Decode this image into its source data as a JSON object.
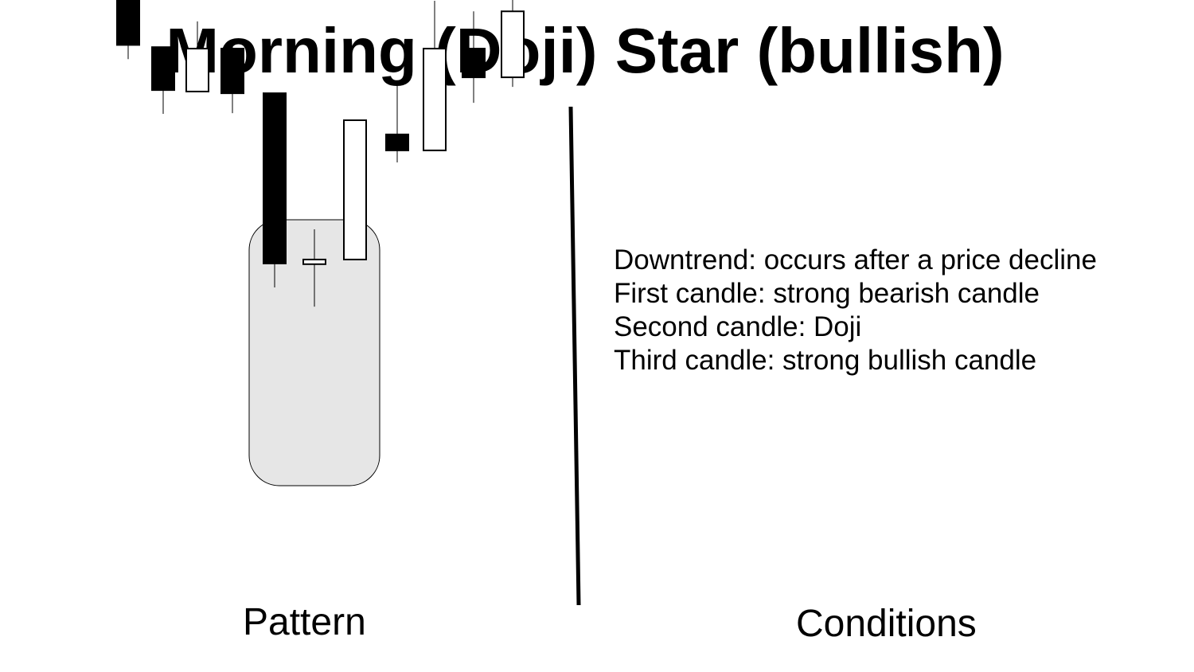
{
  "title": "Morning (Doji) Star (bullish)",
  "labels": {
    "pattern": "Pattern",
    "conditions": "Conditions"
  },
  "conditions": [
    "Downtrend: occurs after a price decline",
    "First candle: strong bearish candle",
    "Second candle: Doji",
    "Third candle: strong bullish candle"
  ],
  "colors": {
    "bearish": "#000000",
    "bullish": "#ffffff",
    "highlight": "#e6e6e6",
    "outline": "#000000"
  },
  "chart_data": {
    "type": "candlestick",
    "note_scale": "unlabeled relative price levels (no axis printed)",
    "candles": [
      {
        "dir": "bear",
        "open": 100,
        "close": 82.0,
        "high": 104.4,
        "low": 76.2
      },
      {
        "dir": "bear",
        "open": 81.1,
        "close": 63.6,
        "high": 81.1,
        "low": 53.9
      },
      {
        "dir": "bull",
        "open": 63.0,
        "close": 80.5,
        "high": 91.6,
        "low": 63.0
      },
      {
        "dir": "bear",
        "open": 80.5,
        "close": 62.3,
        "high": 82.5,
        "low": 54.2
      },
      {
        "dir": "bear",
        "open": 62.3,
        "close": -7.1,
        "high": 62.3,
        "low": -16.9,
        "pattern": true
      },
      {
        "dir": "bull",
        "open": -7.4,
        "close": -5.5,
        "high": 6.8,
        "low": -24.7,
        "pattern": true
      },
      {
        "dir": "bull",
        "open": -5.5,
        "close": 51.3,
        "high": 51.3,
        "low": -5.5,
        "pattern": true
      },
      {
        "dir": "bear",
        "open": 45.5,
        "close": 39.0,
        "high": 65.9,
        "low": 34.1
      },
      {
        "dir": "bull",
        "open": 39.0,
        "close": 80.5,
        "high": 100.0,
        "low": 39.0
      },
      {
        "dir": "bear",
        "open": 80.5,
        "close": 68.8,
        "high": 95.7,
        "low": 58.4
      },
      {
        "dir": "bull",
        "open": 68.8,
        "close": 95.7,
        "high": 106.8,
        "low": 64.9
      }
    ]
  }
}
